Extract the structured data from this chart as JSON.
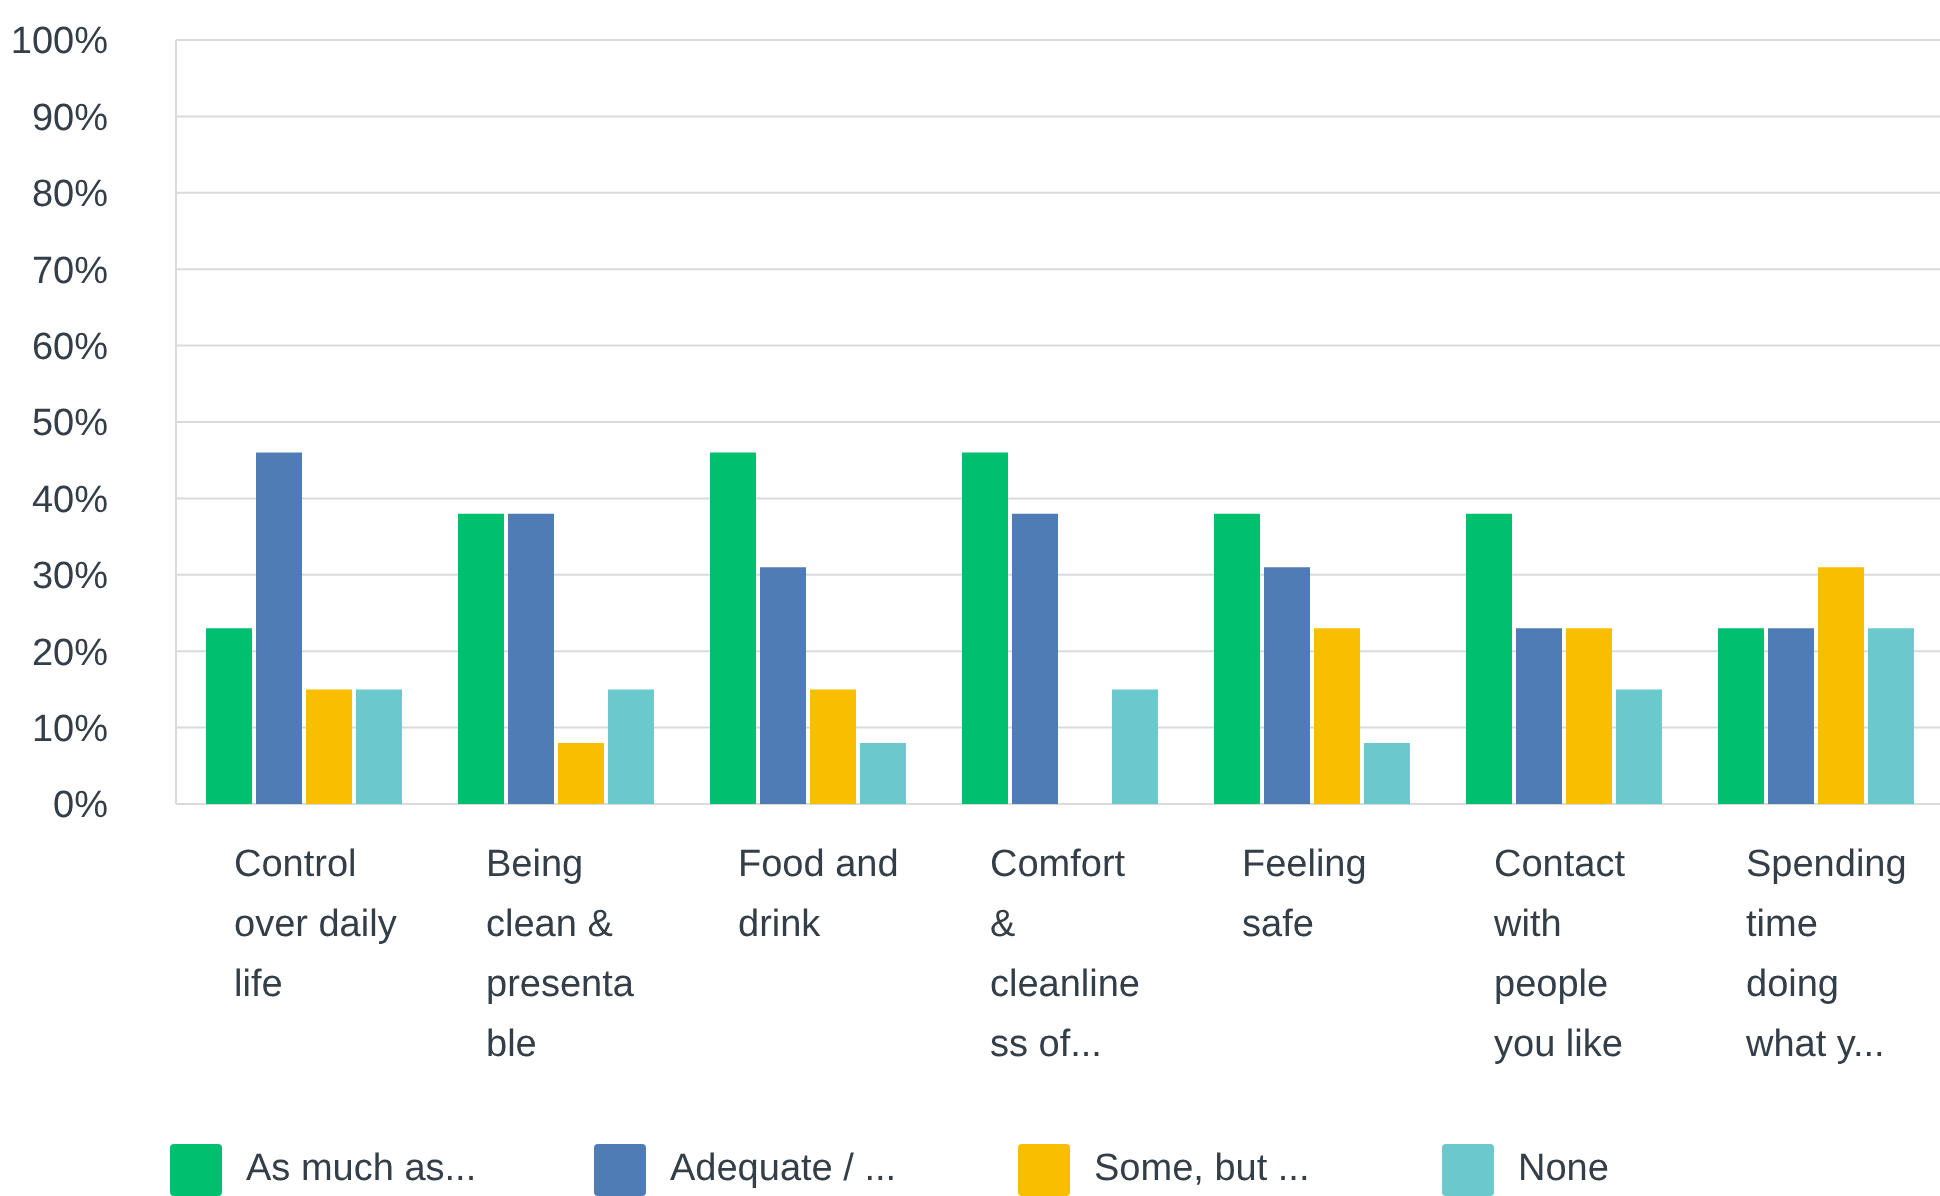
{
  "chart_data": {
    "type": "bar",
    "categories": [
      "Control over daily life",
      "Being clean & presentable",
      "Food and drink",
      "Comfort & cleanliness of...",
      "Feeling safe",
      "Contact with people you like",
      "Spending time doing what y..."
    ],
    "series": [
      {
        "name": "As much as...",
        "color": "#00bf6f",
        "values": [
          23,
          38,
          46,
          46,
          38,
          38,
          23
        ]
      },
      {
        "name": "Adequate / ...",
        "color": "#507cb6",
        "values": [
          46,
          38,
          31,
          38,
          31,
          23,
          23
        ]
      },
      {
        "name": "Some, but ...",
        "color": "#f9be00",
        "values": [
          15,
          8,
          15,
          0,
          23,
          23,
          31
        ]
      },
      {
        "name": "None",
        "color": "#6bc8cd",
        "values": [
          15,
          15,
          8,
          15,
          8,
          15,
          23
        ]
      }
    ],
    "ylim": [
      0,
      100
    ],
    "yticks": [
      {
        "value": 0,
        "label": "0%"
      },
      {
        "value": 10,
        "label": "10%"
      },
      {
        "value": 20,
        "label": "20%"
      },
      {
        "value": 30,
        "label": "30%"
      },
      {
        "value": 40,
        "label": "40%"
      },
      {
        "value": 50,
        "label": "50%"
      },
      {
        "value": 60,
        "label": "60%"
      },
      {
        "value": 70,
        "label": "70%"
      },
      {
        "value": 80,
        "label": "80%"
      },
      {
        "value": 90,
        "label": "90%"
      },
      {
        "value": 100,
        "label": "100%"
      }
    ],
    "grid": "y",
    "legend": "bottom"
  }
}
